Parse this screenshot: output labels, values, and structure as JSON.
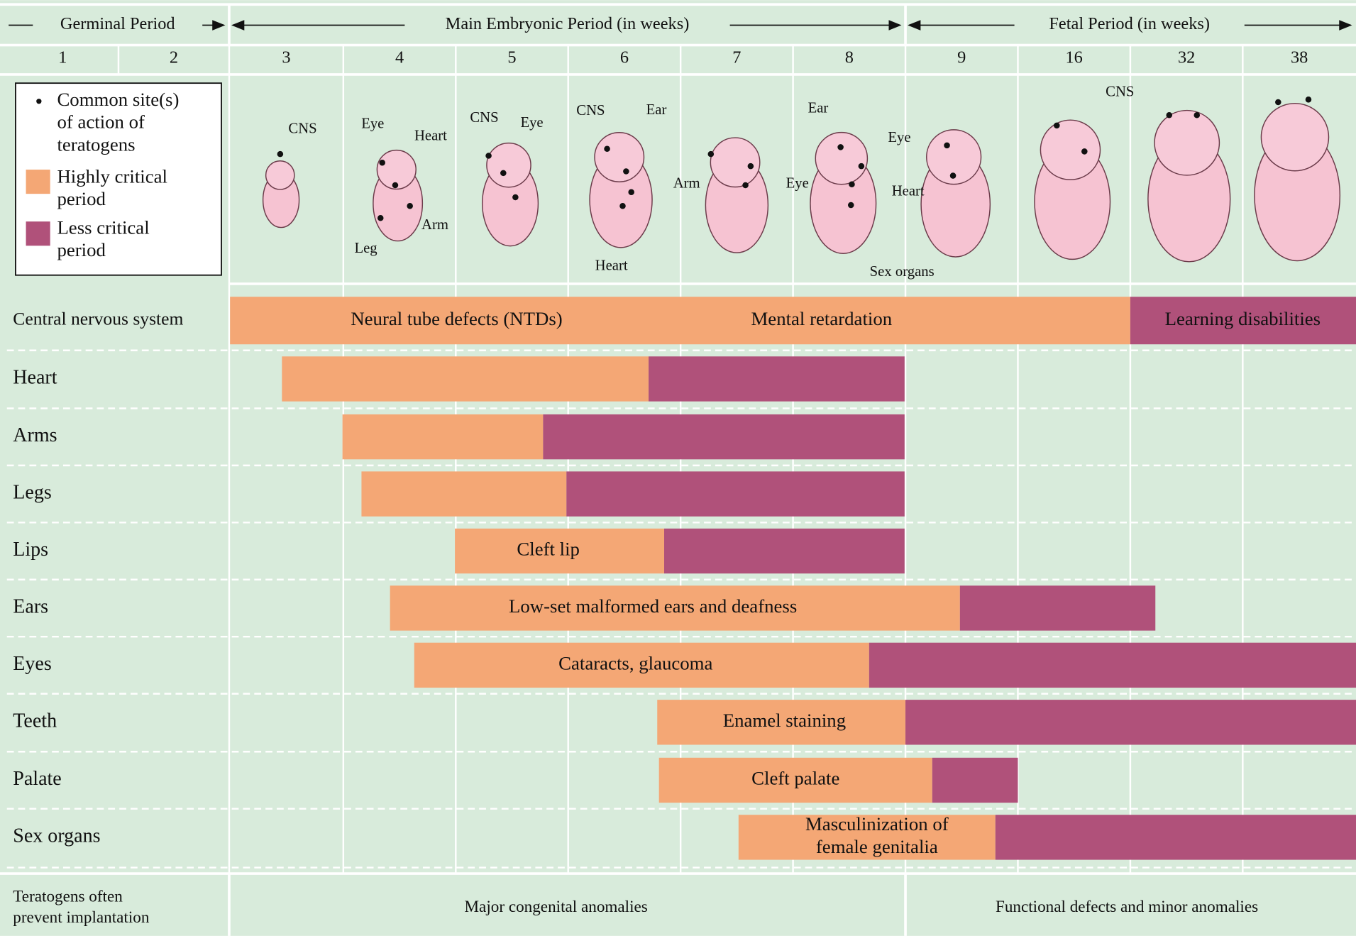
{
  "header": {
    "periods": [
      "Germinal Period",
      "Main Embryonic Period (in weeks)",
      "Fetal Period (in weeks)"
    ],
    "weeks": [
      "1",
      "2",
      "3",
      "4",
      "5",
      "6",
      "7",
      "8",
      "9",
      "16",
      "32",
      "38"
    ]
  },
  "legend": {
    "items": [
      {
        "lines": [
          "Common site(s)",
          "of action of",
          "teratogens"
        ]
      },
      {
        "lines": [
          "Highly critical",
          "period"
        ]
      },
      {
        "lines": [
          "Less critical",
          "period"
        ]
      }
    ]
  },
  "illustration_labels": [
    "CNS",
    "Eye",
    "Heart",
    "CNS",
    "Eye",
    "Leg",
    "Arm",
    "CNS",
    "Ear",
    "Arm",
    "Heart",
    "Ear",
    "Eye",
    "Eye",
    "Heart",
    "Sex organs",
    "CNS"
  ],
  "rows": [
    {
      "name": "Central nervous system",
      "labels": [
        "Neural tube defects (NTDs)",
        "Mental retardation",
        "Learning disabilities"
      ]
    },
    {
      "name": "Heart",
      "labels": []
    },
    {
      "name": "Arms",
      "labels": []
    },
    {
      "name": "Legs",
      "labels": []
    },
    {
      "name": "Lips",
      "labels": [
        "Cleft lip"
      ]
    },
    {
      "name": "Ears",
      "labels": [
        "Low-set malformed ears and deafness"
      ]
    },
    {
      "name": "Eyes",
      "labels": [
        "Cataracts, glaucoma"
      ]
    },
    {
      "name": "Teeth",
      "labels": [
        "Enamel staining"
      ]
    },
    {
      "name": "Palate",
      "labels": [
        "Cleft palate"
      ]
    },
    {
      "name": "Sex organs",
      "labels": [
        "Masculinization of",
        "female genitalia"
      ]
    }
  ],
  "footer": {
    "germinal": [
      "Teratogens often",
      "prevent implantation"
    ],
    "embryonic": "Major congenital anomalies",
    "fetal": "Functional defects and minor anomalies"
  }
}
